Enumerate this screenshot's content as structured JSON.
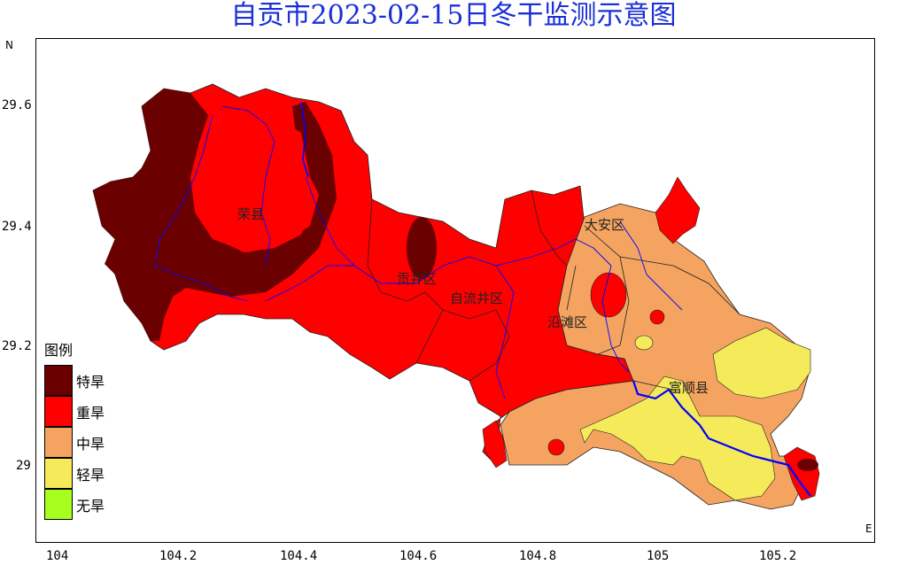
{
  "title": "自贡市2023-02-15日冬干监测示意图",
  "axes": {
    "lat_ticks": [
      "29.6",
      "29.4",
      "29.2",
      "29"
    ],
    "lon_ticks": [
      "104",
      "104.2",
      "104.4",
      "104.6",
      "104.8",
      "105",
      "105.2"
    ],
    "north": "N",
    "east": "E"
  },
  "legend": {
    "title": "图例",
    "items": [
      {
        "label": "特旱",
        "color": "#6b0000"
      },
      {
        "label": "重旱",
        "color": "#ff0000"
      },
      {
        "label": "中旱",
        "color": "#f4a460"
      },
      {
        "label": "轻旱",
        "color": "#f5ea5a"
      },
      {
        "label": "无旱",
        "color": "#a6ff1e"
      }
    ]
  },
  "regions": [
    "荣县",
    "贡井区",
    "自流井区",
    "大安区",
    "沿滩区",
    "富顺县"
  ],
  "colors": {
    "title": "#1a2fd6",
    "river": "#0000ff",
    "boundary": "#333333"
  }
}
